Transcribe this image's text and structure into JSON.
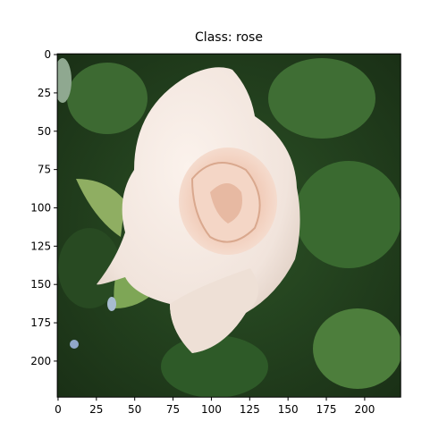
{
  "chart_data": {
    "type": "image",
    "title": "Class: rose",
    "xlim": [
      -0.5,
      223.5
    ],
    "ylim": [
      223.5,
      -0.5
    ],
    "xticks": [
      0,
      25,
      50,
      75,
      100,
      125,
      150,
      175,
      200
    ],
    "yticks": [
      0,
      25,
      50,
      75,
      100,
      125,
      150,
      175,
      200
    ]
  }
}
